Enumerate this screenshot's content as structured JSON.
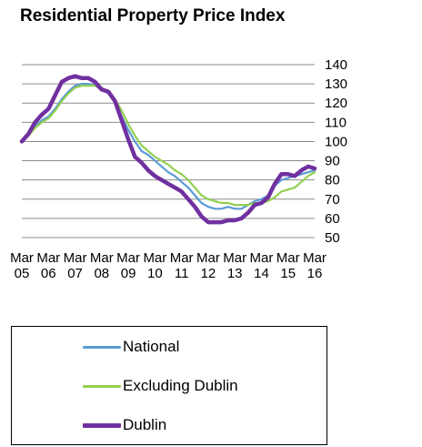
{
  "title": "Residential Property Price Index",
  "chart_data": {
    "type": "line",
    "title": "Residential Property Price Index",
    "xlabel": "",
    "ylabel": "",
    "ylim": [
      50,
      140
    ],
    "y_ticks": [
      50,
      60,
      70,
      80,
      90,
      100,
      110,
      120,
      130,
      140
    ],
    "y_axis_side": "right",
    "grid": "horizontal",
    "legend_position": "bottom",
    "x_range": [
      2005.0,
      2016.0
    ],
    "x_ticks": [
      {
        "month": "Mar",
        "year": "05",
        "x": 2005.0
      },
      {
        "month": "Mar",
        "year": "06",
        "x": 2006.0
      },
      {
        "month": "Mar",
        "year": "07",
        "x": 2007.0
      },
      {
        "month": "Mar",
        "year": "08",
        "x": 2008.0
      },
      {
        "month": "Mar",
        "year": "09",
        "x": 2009.0
      },
      {
        "month": "Mar",
        "year": "10",
        "x": 2010.0
      },
      {
        "month": "Mar",
        "year": "11",
        "x": 2011.0
      },
      {
        "month": "Mar",
        "year": "12",
        "x": 2012.0
      },
      {
        "month": "Mar",
        "year": "13",
        "x": 2013.0
      },
      {
        "month": "Mar",
        "year": "14",
        "x": 2014.0
      },
      {
        "month": "Mar",
        "year": "15",
        "x": 2015.0
      },
      {
        "month": "Mar",
        "year": "16",
        "x": 2016.0
      }
    ],
    "series": [
      {
        "name": "National",
        "color": "#5b9bd5",
        "points": [
          [
            2005.0,
            100
          ],
          [
            2005.25,
            103
          ],
          [
            2005.5,
            108
          ],
          [
            2005.75,
            111
          ],
          [
            2006.0,
            113
          ],
          [
            2006.25,
            117
          ],
          [
            2006.5,
            122
          ],
          [
            2006.75,
            126
          ],
          [
            2007.0,
            129
          ],
          [
            2007.25,
            130
          ],
          [
            2007.5,
            130
          ],
          [
            2007.75,
            129
          ],
          [
            2008.0,
            127
          ],
          [
            2008.25,
            125
          ],
          [
            2008.5,
            120
          ],
          [
            2008.75,
            113
          ],
          [
            2009.0,
            106
          ],
          [
            2009.25,
            100
          ],
          [
            2009.5,
            95
          ],
          [
            2009.75,
            93
          ],
          [
            2010.0,
            90
          ],
          [
            2010.25,
            87
          ],
          [
            2010.5,
            84
          ],
          [
            2010.75,
            82
          ],
          [
            2011.0,
            79
          ],
          [
            2011.25,
            76
          ],
          [
            2011.5,
            72
          ],
          [
            2011.75,
            68
          ],
          [
            2012.0,
            66
          ],
          [
            2012.25,
            65
          ],
          [
            2012.5,
            65
          ],
          [
            2012.75,
            66
          ],
          [
            2013.0,
            65
          ],
          [
            2013.25,
            65
          ],
          [
            2013.5,
            67
          ],
          [
            2013.75,
            69
          ],
          [
            2014.0,
            70
          ],
          [
            2014.25,
            72
          ],
          [
            2014.5,
            77
          ],
          [
            2014.75,
            80
          ],
          [
            2015.0,
            81
          ],
          [
            2015.25,
            82
          ],
          [
            2015.5,
            83
          ],
          [
            2015.75,
            84
          ],
          [
            2016.0,
            85
          ]
        ]
      },
      {
        "name": "Excluding Dublin",
        "color": "#92d050",
        "points": [
          [
            2005.0,
            100
          ],
          [
            2005.25,
            103
          ],
          [
            2005.5,
            107
          ],
          [
            2005.75,
            110
          ],
          [
            2006.0,
            112
          ],
          [
            2006.25,
            116
          ],
          [
            2006.5,
            121
          ],
          [
            2006.75,
            125
          ],
          [
            2007.0,
            128
          ],
          [
            2007.25,
            129
          ],
          [
            2007.5,
            129
          ],
          [
            2007.75,
            129
          ],
          [
            2008.0,
            128
          ],
          [
            2008.25,
            126
          ],
          [
            2008.5,
            122
          ],
          [
            2008.75,
            116
          ],
          [
            2009.0,
            109
          ],
          [
            2009.25,
            103
          ],
          [
            2009.5,
            98
          ],
          [
            2009.75,
            95
          ],
          [
            2010.0,
            92
          ],
          [
            2010.25,
            90
          ],
          [
            2010.5,
            88
          ],
          [
            2010.75,
            85
          ],
          [
            2011.0,
            83
          ],
          [
            2011.25,
            80
          ],
          [
            2011.5,
            76
          ],
          [
            2011.75,
            72
          ],
          [
            2012.0,
            70
          ],
          [
            2012.25,
            69
          ],
          [
            2012.5,
            68
          ],
          [
            2012.75,
            68
          ],
          [
            2013.0,
            67
          ],
          [
            2013.25,
            67
          ],
          [
            2013.5,
            67
          ],
          [
            2013.75,
            68
          ],
          [
            2014.0,
            68
          ],
          [
            2014.25,
            69
          ],
          [
            2014.5,
            71
          ],
          [
            2014.75,
            74
          ],
          [
            2015.0,
            75
          ],
          [
            2015.25,
            76
          ],
          [
            2015.5,
            79
          ],
          [
            2015.75,
            82
          ],
          [
            2016.0,
            84
          ]
        ]
      },
      {
        "name": "Dublin",
        "color": "#7030a0",
        "points": [
          [
            2005.0,
            100
          ],
          [
            2005.25,
            104
          ],
          [
            2005.5,
            110
          ],
          [
            2005.75,
            114
          ],
          [
            2006.0,
            117
          ],
          [
            2006.25,
            124
          ],
          [
            2006.5,
            131
          ],
          [
            2006.75,
            133
          ],
          [
            2007.0,
            134
          ],
          [
            2007.25,
            133
          ],
          [
            2007.5,
            133
          ],
          [
            2007.75,
            131
          ],
          [
            2008.0,
            127
          ],
          [
            2008.25,
            126
          ],
          [
            2008.5,
            121
          ],
          [
            2008.75,
            111
          ],
          [
            2009.0,
            101
          ],
          [
            2009.25,
            92
          ],
          [
            2009.5,
            89
          ],
          [
            2009.75,
            85
          ],
          [
            2010.0,
            82
          ],
          [
            2010.25,
            80
          ],
          [
            2010.5,
            78
          ],
          [
            2010.75,
            76
          ],
          [
            2011.0,
            74
          ],
          [
            2011.25,
            70
          ],
          [
            2011.5,
            66
          ],
          [
            2011.75,
            61
          ],
          [
            2012.0,
            58
          ],
          [
            2012.25,
            58
          ],
          [
            2012.5,
            58
          ],
          [
            2012.75,
            59
          ],
          [
            2013.0,
            59
          ],
          [
            2013.25,
            60
          ],
          [
            2013.5,
            63
          ],
          [
            2013.75,
            67
          ],
          [
            2014.0,
            68
          ],
          [
            2014.25,
            71
          ],
          [
            2014.5,
            78
          ],
          [
            2014.75,
            83
          ],
          [
            2015.0,
            83
          ],
          [
            2015.25,
            82
          ],
          [
            2015.5,
            85
          ],
          [
            2015.75,
            87
          ],
          [
            2016.0,
            86
          ]
        ]
      }
    ]
  }
}
